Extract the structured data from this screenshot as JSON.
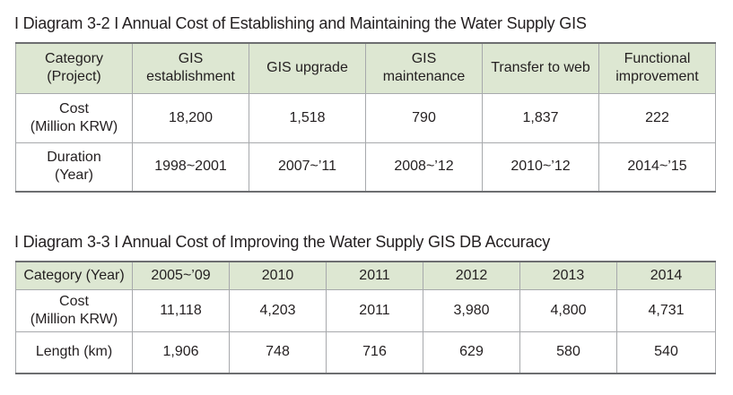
{
  "diagram1": {
    "caption": "I Diagram 3-2 I Annual Cost of Establishing and Maintaining the Water Supply GIS",
    "header": [
      [
        "Category",
        "(Project)"
      ],
      [
        "GIS",
        "establishment"
      ],
      [
        "GIS upgrade"
      ],
      [
        "GIS",
        "maintenance"
      ],
      [
        "Transfer to web"
      ],
      [
        "Functional",
        "improvement"
      ]
    ],
    "rows": [
      {
        "label": [
          "Cost",
          "(Million KRW)"
        ],
        "values": [
          "18,200",
          "1,518",
          "790",
          "1,837",
          "222"
        ]
      },
      {
        "label": [
          "Duration",
          "(Year)"
        ],
        "values": [
          "1998~2001",
          "2007~’11",
          "2008~’12",
          "2010~’12",
          "2014~’15"
        ]
      }
    ]
  },
  "diagram2": {
    "caption": "I Diagram 3-3 I Annual Cost of Improving the Water Supply GIS DB Accuracy",
    "header": [
      "Category (Year)",
      "2005~’09",
      "2010",
      "2011",
      "2012",
      "2013",
      "2014"
    ],
    "rows": [
      {
        "label": [
          "Cost",
          "(Million KRW)"
        ],
        "values": [
          "11,118",
          "4,203",
          "2011",
          "3,980",
          "4,800",
          "4,731"
        ]
      },
      {
        "label": [
          "Length (km)"
        ],
        "values": [
          "1,906",
          "748",
          "716",
          "629",
          "580",
          "540"
        ]
      }
    ]
  }
}
